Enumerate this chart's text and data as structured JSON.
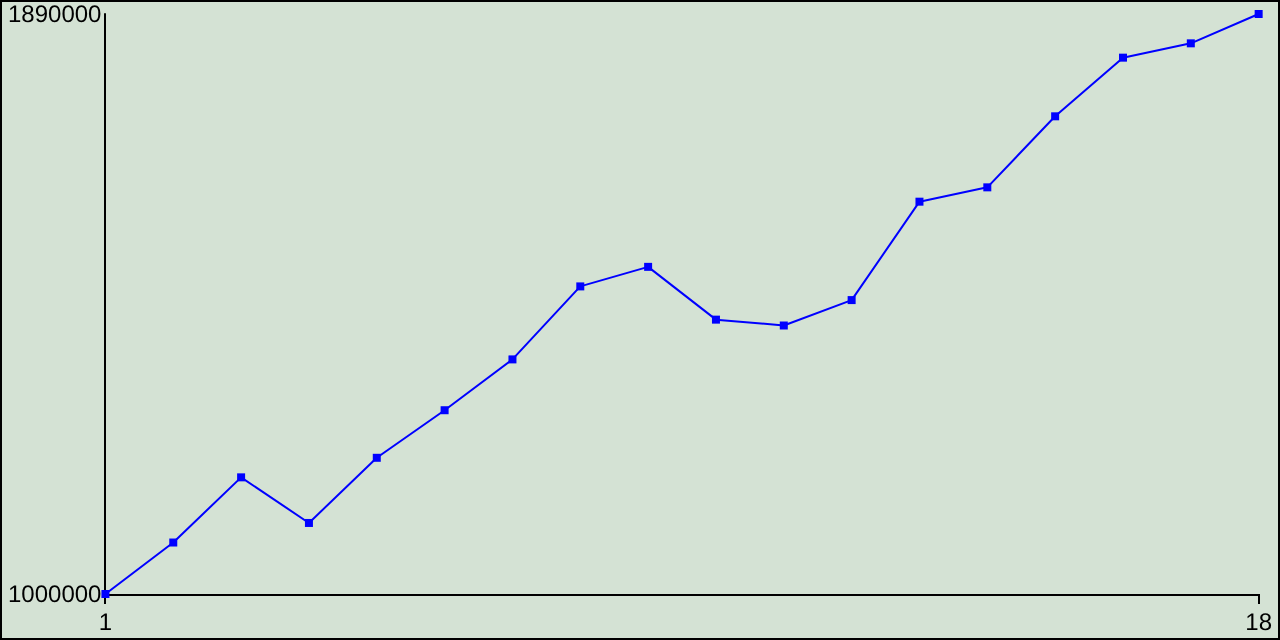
{
  "chart_data": {
    "type": "line",
    "x": [
      1,
      2,
      3,
      4,
      5,
      6,
      7,
      8,
      9,
      10,
      11,
      12,
      13,
      14,
      15,
      16,
      17,
      18
    ],
    "series": [
      {
        "color": "#0000ff",
        "values": [
          1000000,
          1079000,
          1179000,
          1109000,
          1209000,
          1282000,
          1360000,
          1472000,
          1502000,
          1421000,
          1412000,
          1451000,
          1602000,
          1624000,
          1733000,
          1823000,
          1845000,
          1890000
        ]
      }
    ],
    "xlim": [
      1,
      18
    ],
    "xticks": [
      1,
      18
    ],
    "ylim": [
      1000000,
      1890000
    ],
    "yticks": [
      1000000,
      1890000
    ],
    "grid": false,
    "marker": "square",
    "line_style": "solid"
  }
}
